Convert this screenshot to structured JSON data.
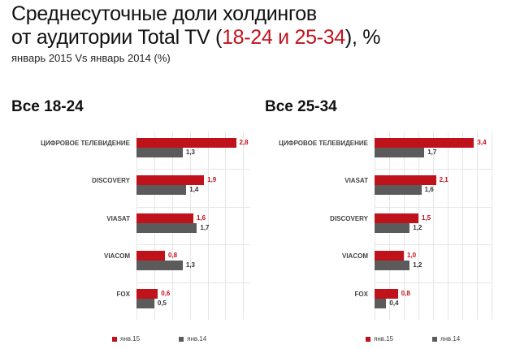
{
  "header": {
    "title_line1": "Среднесуточные доли холдингов",
    "title_line2_prefix": "от аудитории Total TV (",
    "title_line2_highlight": "18-24 и 25-34",
    "title_line2_suffix": "), %",
    "subtitle": "январь 2015 Vs январь 2014 (%)"
  },
  "colors": {
    "jan15": "#c0121b",
    "jan14": "#5b5b5b"
  },
  "chart_data": [
    {
      "type": "bar",
      "orientation": "horizontal",
      "title": "Все 18-24",
      "categories": [
        "ЦИФРОВОЕ ТЕЛЕВИДЕНИЕ",
        "DISCOVERY",
        "VIASAT",
        "VIACOM",
        "FOX"
      ],
      "series": [
        {
          "name": "янв.15",
          "values": [
            2.8,
            1.9,
            1.6,
            0.8,
            0.6
          ],
          "labels": [
            "2,8",
            "1,9",
            "1,6",
            "0,8",
            "0,6"
          ]
        },
        {
          "name": "янв.14",
          "values": [
            1.3,
            1.4,
            1.7,
            1.3,
            0.5
          ],
          "labels": [
            "1,3",
            "1,4",
            "1,7",
            "1,3",
            "0,5"
          ]
        }
      ],
      "xlim": [
        0,
        3.2
      ],
      "grid": true,
      "legend": "bottom"
    },
    {
      "type": "bar",
      "orientation": "horizontal",
      "title": "Все 25-34",
      "categories": [
        "ЦИФРОВОЕ ТЕЛЕВИДЕНИЕ",
        "VIASAT",
        "DISCOVERY",
        "VIACOM",
        "FOX"
      ],
      "series": [
        {
          "name": "янв.15",
          "values": [
            3.4,
            2.1,
            1.5,
            1.0,
            0.8
          ],
          "labels": [
            "3,4",
            "2,1",
            "1,5",
            "1,0",
            "0,8"
          ]
        },
        {
          "name": "янв.14",
          "values": [
            1.7,
            1.6,
            1.2,
            1.2,
            0.4
          ],
          "labels": [
            "1,7",
            "1,6",
            "1,2",
            "1,2",
            "0,4"
          ]
        }
      ],
      "xlim": [
        0,
        4.0
      ],
      "grid": true,
      "legend": "bottom"
    }
  ]
}
